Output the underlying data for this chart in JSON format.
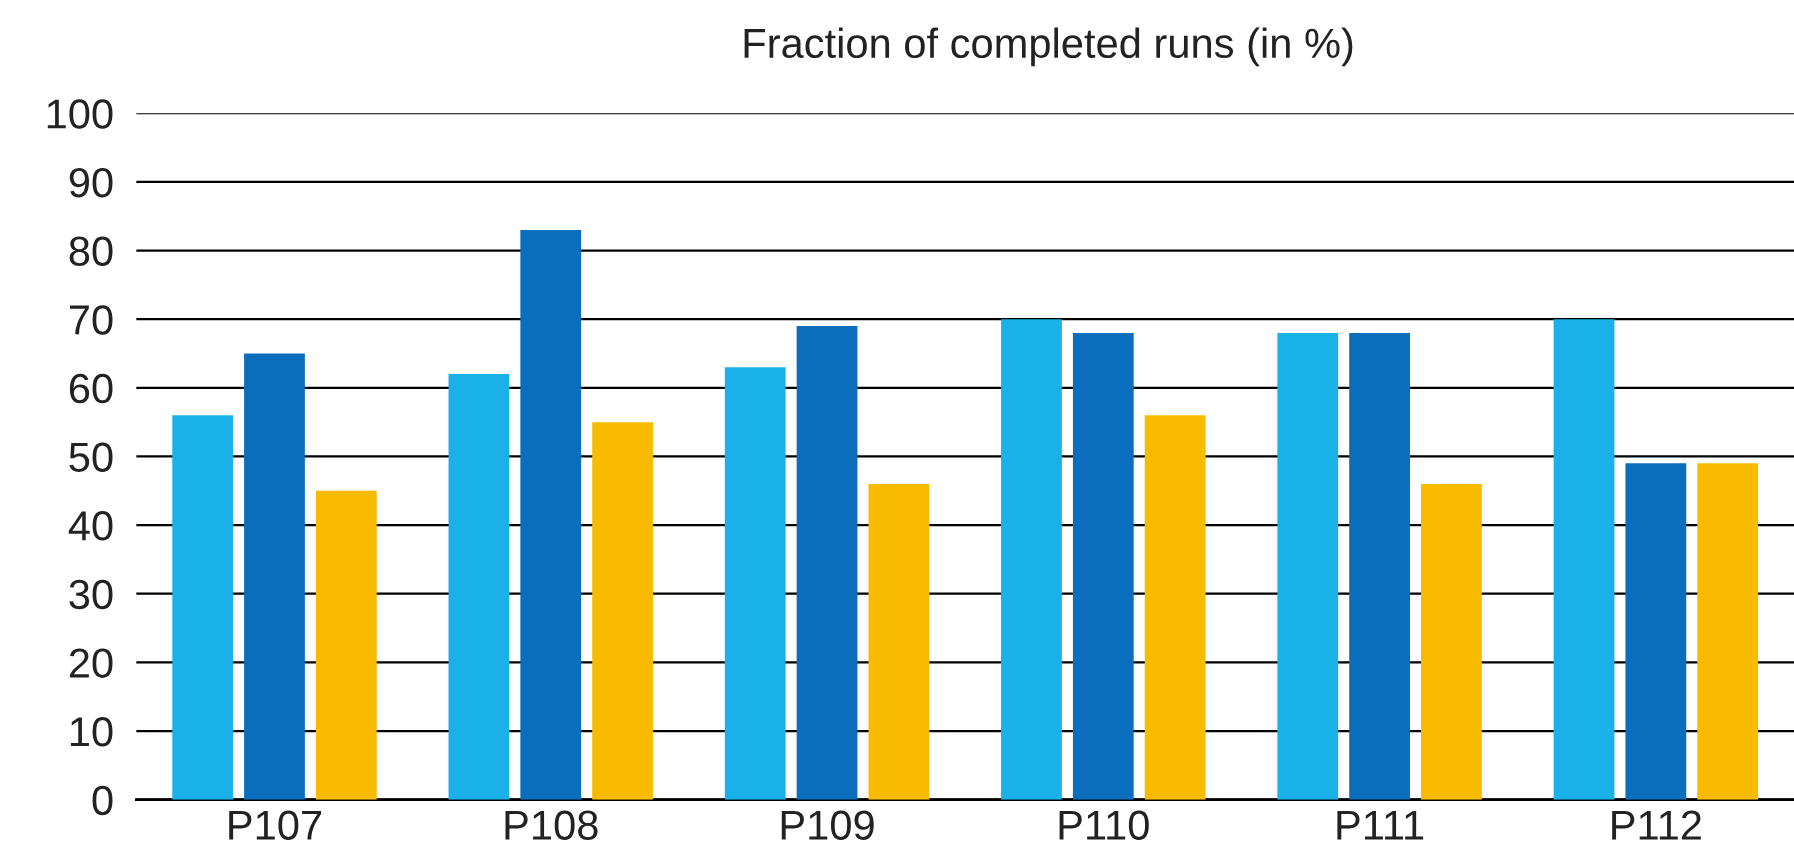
{
  "chart_data": {
    "type": "bar",
    "title": "Fraction of completed runs (in %)",
    "categories": [
      "P107",
      "P108",
      "P109",
      "P110",
      "P111",
      "P112"
    ],
    "series": [
      {
        "color": "#1ab0e8",
        "values": [
          56,
          62,
          63,
          70,
          68,
          70
        ]
      },
      {
        "color": "#0a6ebd",
        "values": [
          65,
          83,
          69,
          68,
          68,
          49
        ]
      },
      {
        "color": "#f8bb00",
        "values": [
          45,
          55,
          46,
          56,
          46,
          49
        ]
      }
    ],
    "ylim": [
      0,
      100
    ],
    "yticks": [
      0,
      10,
      20,
      30,
      40,
      50,
      60,
      70,
      80,
      90,
      100
    ],
    "grid": "y",
    "legend": false
  }
}
